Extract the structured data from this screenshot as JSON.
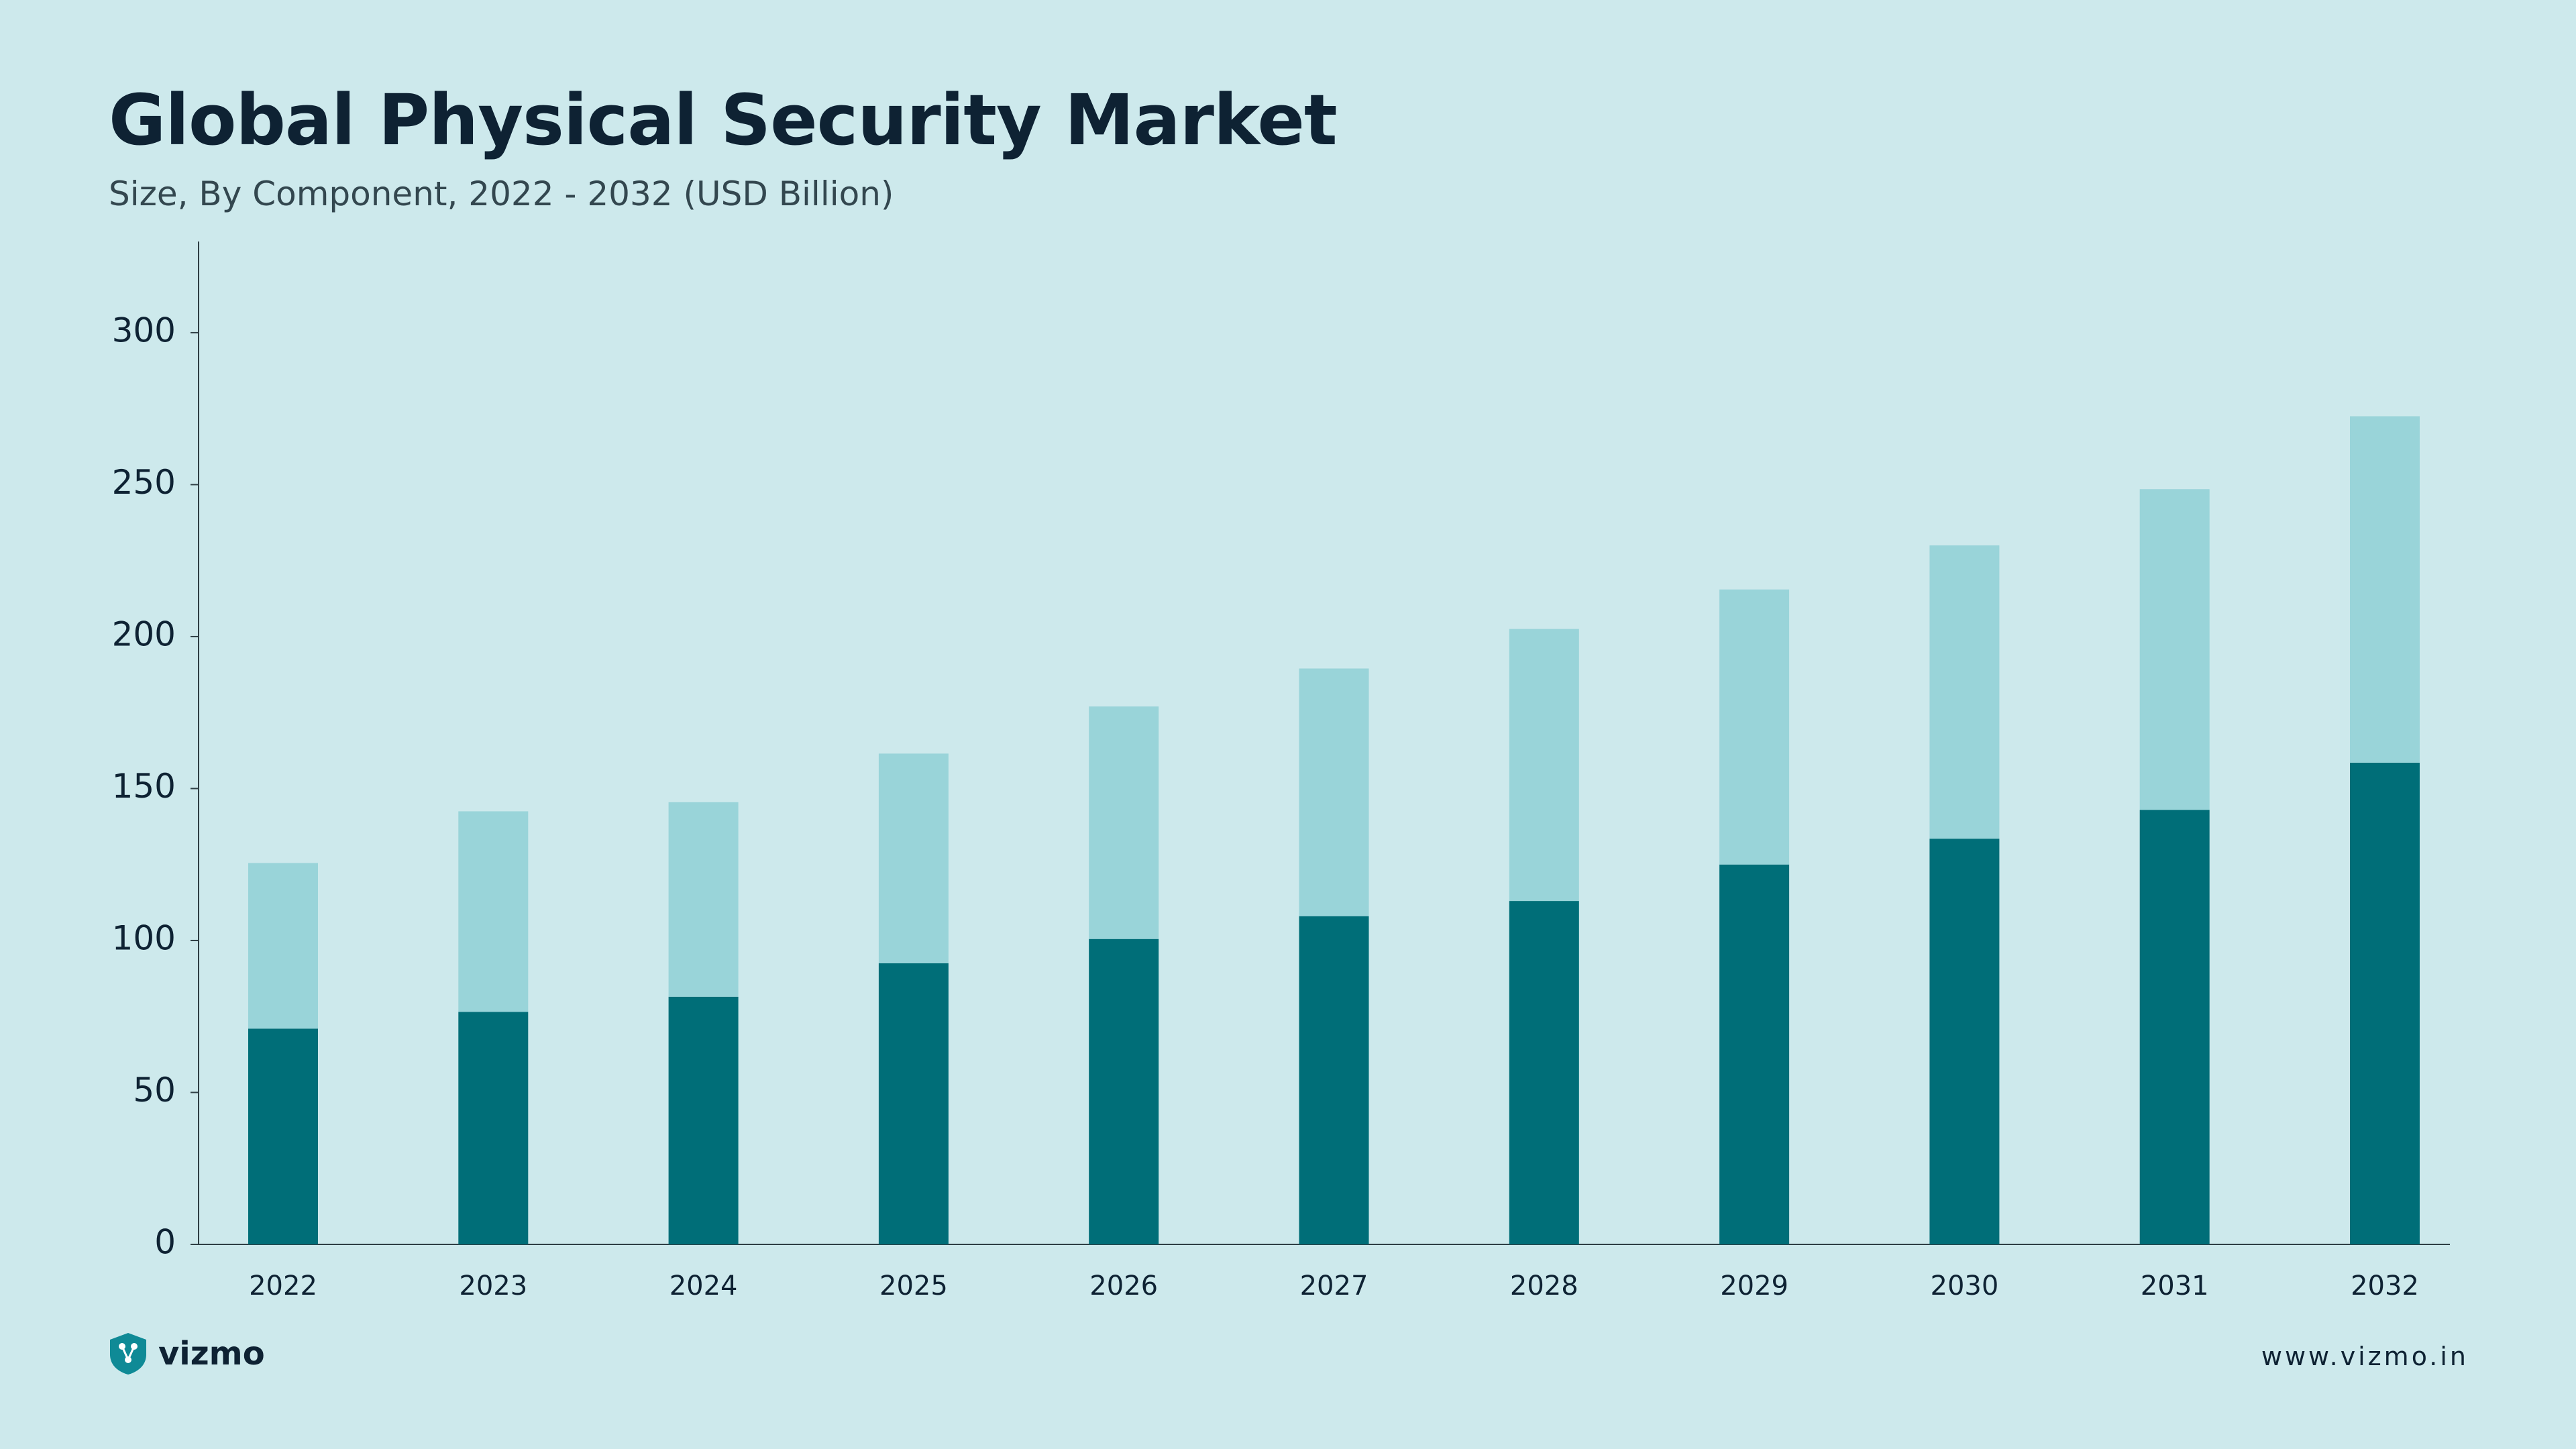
{
  "header": {
    "title": "Global Physical Security Market",
    "subtitle": "Size, By Component, 2022 - 2032 (USD Billion)"
  },
  "footer": {
    "brand": "vizmo",
    "url": "www.vizmo.in"
  },
  "colors": {
    "background": "#cde9ec",
    "series_dark": "#006e78",
    "series_light": "#99d4d9",
    "text": "#0e2233"
  },
  "chart_data": {
    "type": "bar",
    "stacked": true,
    "categories": [
      "2022",
      "2023",
      "2024",
      "2025",
      "2026",
      "2027",
      "2028",
      "2029",
      "2030",
      "2031",
      "2032"
    ],
    "series": [
      {
        "values": [
          71,
          76.5,
          81.5,
          92.5,
          100.5,
          108,
          113,
          125,
          133.5,
          143,
          158.5
        ]
      },
      {
        "values": [
          54.5,
          66,
          64,
          69,
          76.5,
          81.5,
          89.5,
          90.5,
          96.5,
          105.5,
          114
        ]
      }
    ],
    "ylim": [
      0,
      330
    ],
    "yticks": [
      0,
      50,
      100,
      150,
      200,
      250,
      300
    ],
    "grid": false,
    "legend": "none"
  }
}
